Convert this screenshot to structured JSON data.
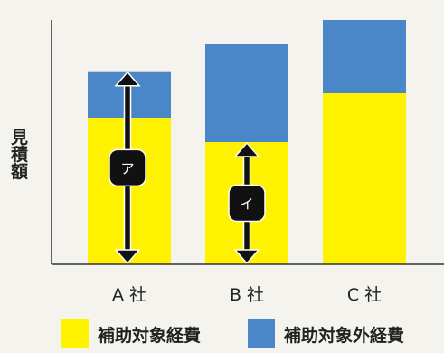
{
  "chart_data": {
    "type": "bar",
    "stacked": true,
    "ylabel": "見積額",
    "categories": [
      "A 社",
      "B 社",
      "C 社"
    ],
    "series": [
      {
        "name": "補助対象経費",
        "color": "#fef200",
        "values": [
          60,
          50,
          70
        ]
      },
      {
        "name": "補助対象外経費",
        "color": "#4a86c8",
        "values": [
          19,
          40,
          30
        ]
      }
    ],
    "ylim": [
      0,
      100
    ],
    "grid": false,
    "legend_position": "bottom",
    "annotations": [
      {
        "category": "A 社",
        "label": "ア",
        "spans": "total"
      },
      {
        "category": "B 社",
        "label": "イ",
        "spans": "補助対象経費"
      }
    ]
  }
}
